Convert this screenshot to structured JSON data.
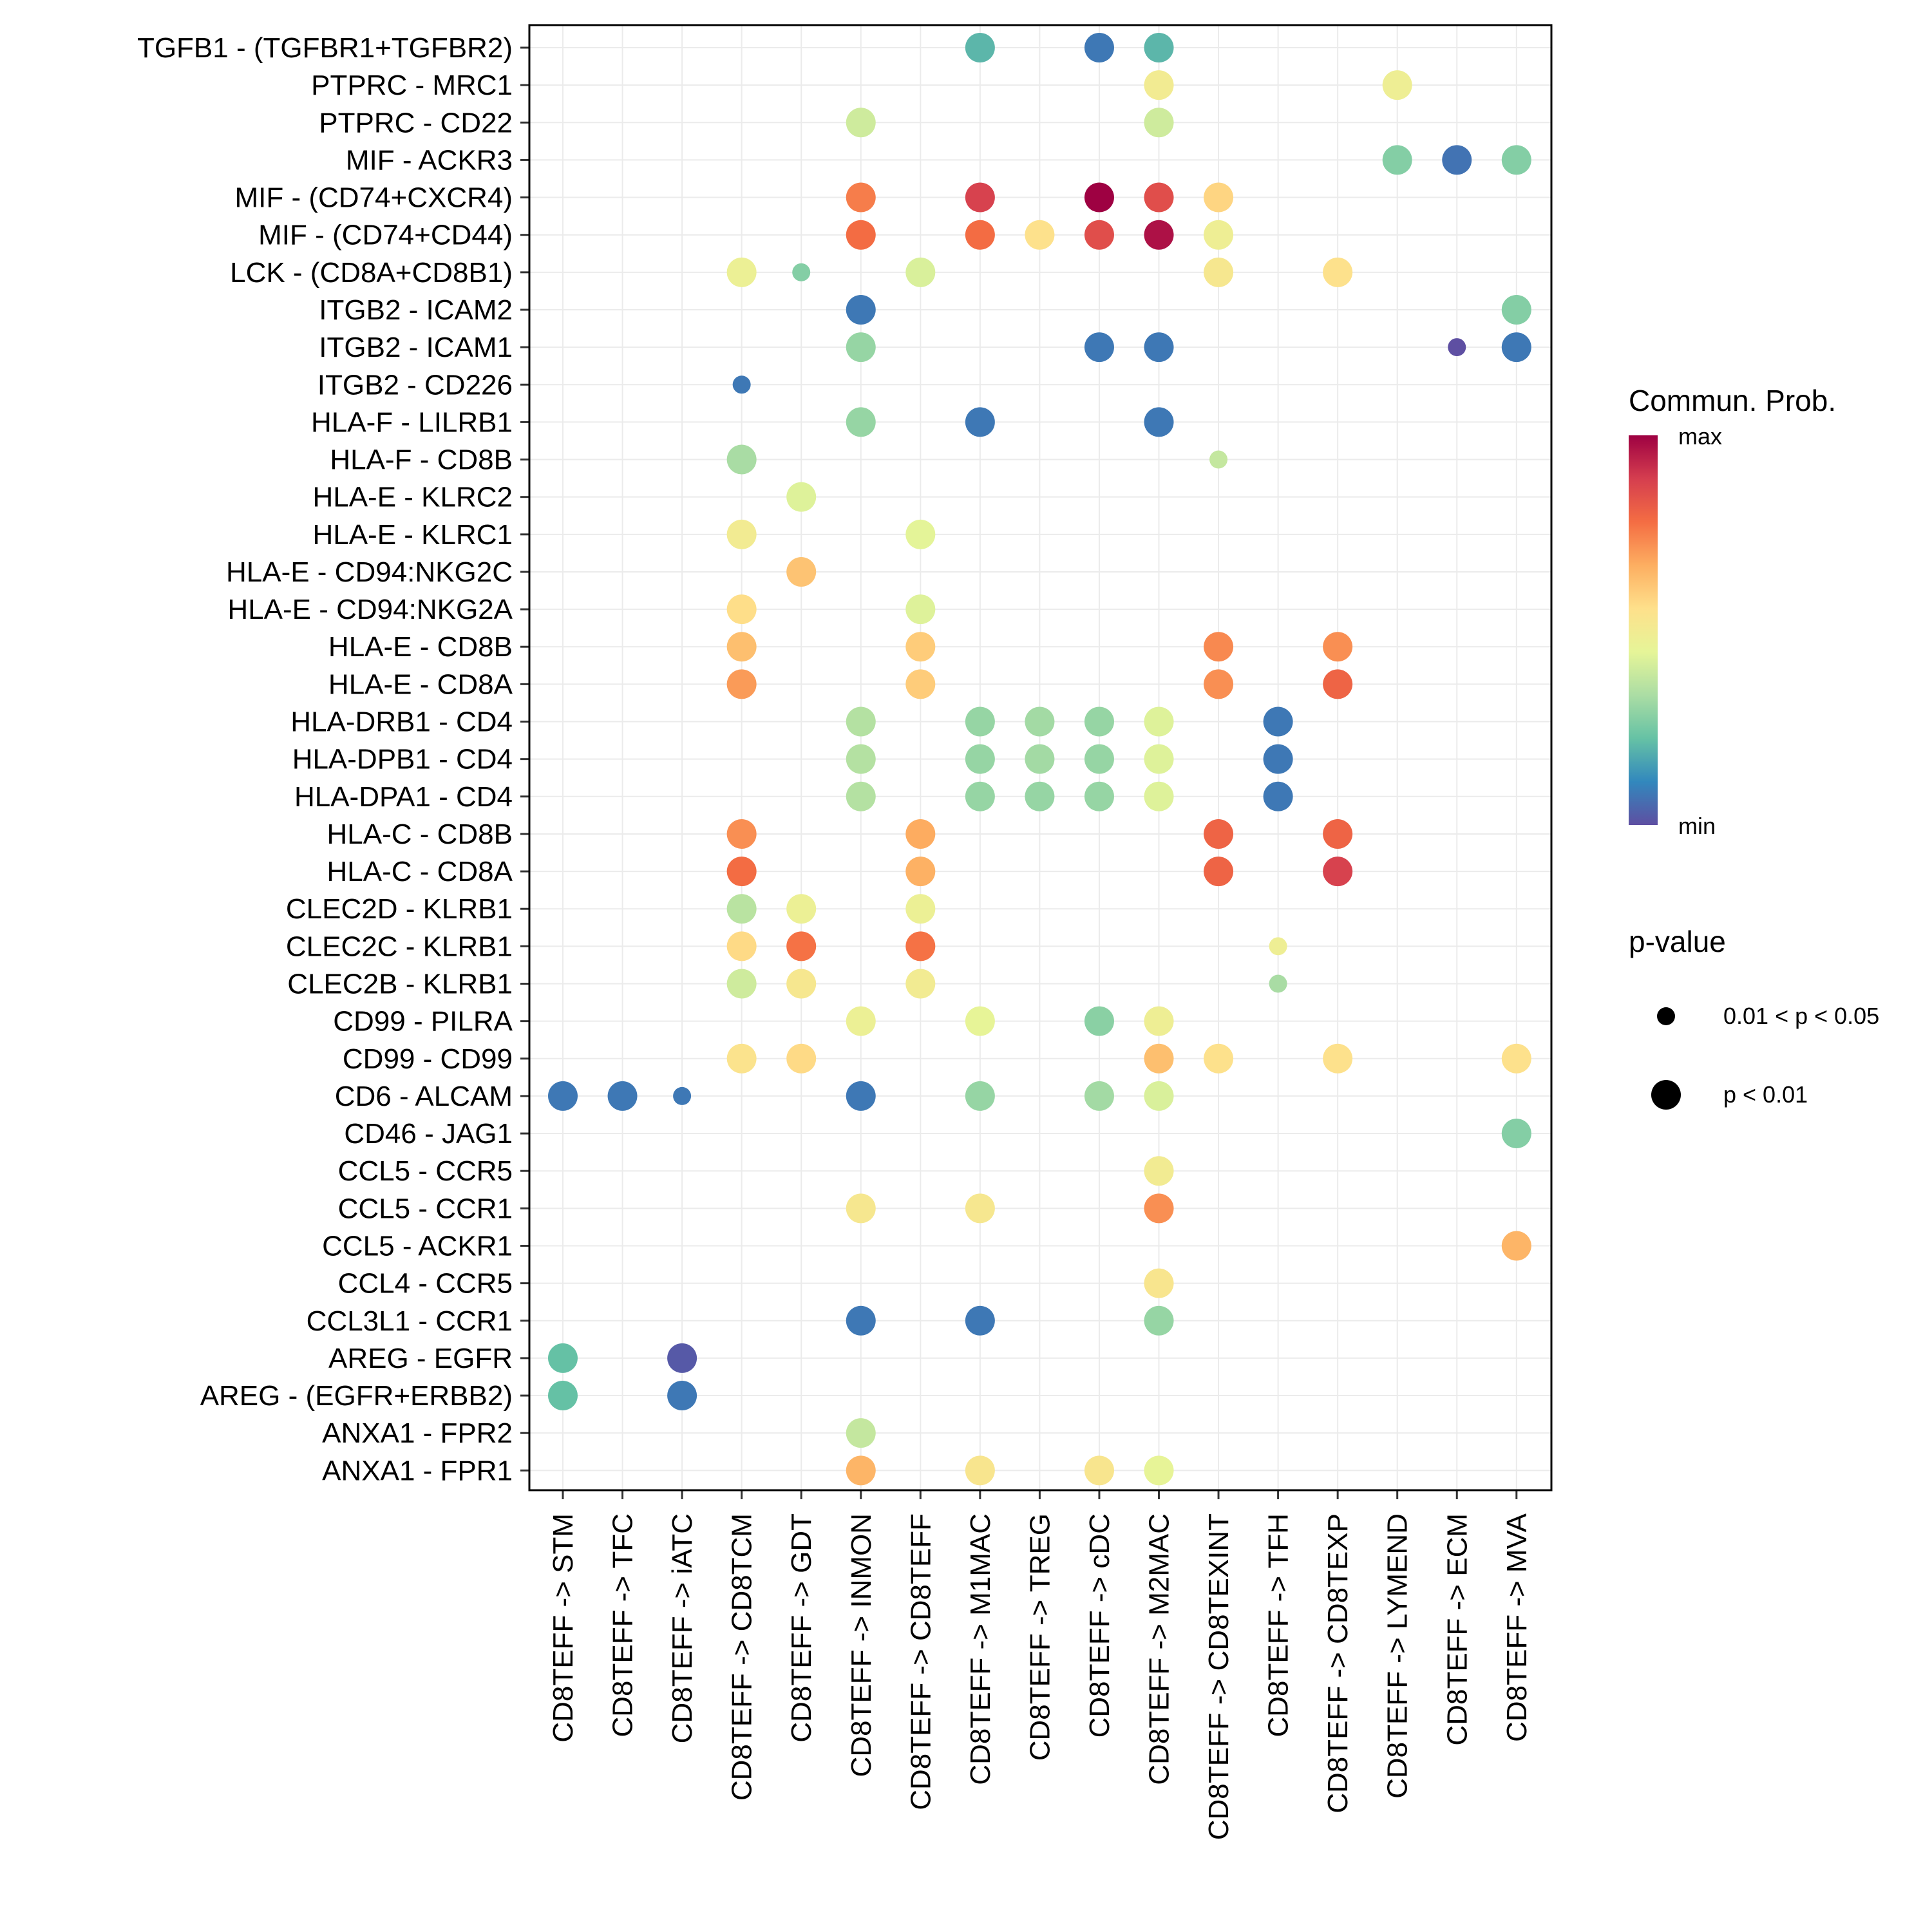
{
  "chart_data": {
    "type": "scatter",
    "subtype": "bubble",
    "title": "",
    "xlabel": "",
    "ylabel": "",
    "grid": true,
    "columns": [
      "CD8TEFF -> STM",
      "CD8TEFF -> TFC",
      "CD8TEFF -> iATC",
      "CD8TEFF -> CD8TCM",
      "CD8TEFF -> GDT",
      "CD8TEFF -> INMON",
      "CD8TEFF -> CD8TEFF",
      "CD8TEFF -> M1MAC",
      "CD8TEFF -> TREG",
      "CD8TEFF -> cDC",
      "CD8TEFF -> M2MAC",
      "CD8TEFF -> CD8TEXINT",
      "CD8TEFF -> TFH",
      "CD8TEFF -> CD8TEXP",
      "CD8TEFF -> LYMEND",
      "CD8TEFF -> ECM",
      "CD8TEFF -> MVA"
    ],
    "rows": [
      "TGFB1 - (TGFBR1+TGFBR2)",
      "PTPRC - MRC1",
      "PTPRC - CD22",
      "MIF - ACKR3",
      "MIF - (CD74+CXCR4)",
      "MIF - (CD74+CD44)",
      "LCK - (CD8A+CD8B1)",
      "ITGB2 - ICAM2",
      "ITGB2 - ICAM1",
      "ITGB2 - CD226",
      "HLA-F - LILRB1",
      "HLA-F - CD8B",
      "HLA-E - KLRC2",
      "HLA-E - KLRC1",
      "HLA-E - CD94:NKG2C",
      "HLA-E - CD94:NKG2A",
      "HLA-E - CD8B",
      "HLA-E - CD8A",
      "HLA-DRB1 - CD4",
      "HLA-DPB1 - CD4",
      "HLA-DPA1 - CD4",
      "HLA-C - CD8B",
      "HLA-C - CD8A",
      "CLEC2D - KLRB1",
      "CLEC2C - KLRB1",
      "CLEC2B - KLRB1",
      "CD99 - PILRA",
      "CD99 - CD99",
      "CD6 - ALCAM",
      "CD46 - JAG1",
      "CCL5 - CCR5",
      "CCL5 - CCR1",
      "CCL5 - ACKR1",
      "CCL4 - CCR5",
      "CCL3L1 - CCR1",
      "AREG - EGFR",
      "AREG - (EGFR+ERBB2)",
      "ANXA1 - FPR2",
      "ANXA1 - FPR1"
    ],
    "points_format": [
      "row_index",
      "column_index",
      "commun_prob_scaled_0_to_1",
      "significant_p_lt_0.01"
    ],
    "points": [
      [
        0,
        7,
        0.2,
        1
      ],
      [
        0,
        9,
        0.08,
        1
      ],
      [
        0,
        10,
        0.2,
        1
      ],
      [
        1,
        10,
        0.5,
        1
      ],
      [
        1,
        14,
        0.48,
        1
      ],
      [
        2,
        5,
        0.4,
        1
      ],
      [
        2,
        10,
        0.4,
        1
      ],
      [
        3,
        14,
        0.27,
        1
      ],
      [
        3,
        15,
        0.07,
        1
      ],
      [
        3,
        16,
        0.27,
        1
      ],
      [
        4,
        5,
        0.75,
        1
      ],
      [
        4,
        7,
        0.88,
        1
      ],
      [
        4,
        9,
        1.0,
        1
      ],
      [
        4,
        10,
        0.85,
        1
      ],
      [
        4,
        11,
        0.58,
        1
      ],
      [
        5,
        5,
        0.78,
        1
      ],
      [
        5,
        7,
        0.78,
        1
      ],
      [
        5,
        8,
        0.55,
        1
      ],
      [
        5,
        9,
        0.85,
        1
      ],
      [
        5,
        10,
        0.97,
        1
      ],
      [
        5,
        11,
        0.48,
        1
      ],
      [
        6,
        3,
        0.47,
        1
      ],
      [
        6,
        4,
        0.27,
        0
      ],
      [
        6,
        6,
        0.42,
        1
      ],
      [
        6,
        11,
        0.52,
        1
      ],
      [
        6,
        13,
        0.55,
        1
      ],
      [
        7,
        5,
        0.08,
        1
      ],
      [
        7,
        16,
        0.27,
        1
      ],
      [
        8,
        5,
        0.3,
        1
      ],
      [
        8,
        9,
        0.08,
        1
      ],
      [
        8,
        10,
        0.08,
        1
      ],
      [
        8,
        15,
        0.0,
        0
      ],
      [
        8,
        16,
        0.08,
        1
      ],
      [
        9,
        3,
        0.08,
        0
      ],
      [
        10,
        5,
        0.3,
        1
      ],
      [
        10,
        7,
        0.08,
        1
      ],
      [
        10,
        10,
        0.08,
        1
      ],
      [
        11,
        3,
        0.33,
        1
      ],
      [
        11,
        11,
        0.38,
        0
      ],
      [
        12,
        4,
        0.43,
        1
      ],
      [
        13,
        3,
        0.5,
        1
      ],
      [
        13,
        6,
        0.44,
        1
      ],
      [
        14,
        4,
        0.62,
        1
      ],
      [
        15,
        3,
        0.56,
        1
      ],
      [
        15,
        6,
        0.43,
        1
      ],
      [
        16,
        3,
        0.63,
        1
      ],
      [
        16,
        6,
        0.6,
        1
      ],
      [
        16,
        11,
        0.73,
        1
      ],
      [
        16,
        13,
        0.72,
        1
      ],
      [
        17,
        3,
        0.7,
        1
      ],
      [
        17,
        6,
        0.6,
        1
      ],
      [
        17,
        11,
        0.72,
        1
      ],
      [
        17,
        13,
        0.8,
        1
      ],
      [
        18,
        5,
        0.35,
        1
      ],
      [
        18,
        7,
        0.3,
        1
      ],
      [
        18,
        8,
        0.32,
        1
      ],
      [
        18,
        9,
        0.3,
        1
      ],
      [
        18,
        10,
        0.43,
        1
      ],
      [
        18,
        12,
        0.08,
        1
      ],
      [
        19,
        5,
        0.35,
        1
      ],
      [
        19,
        7,
        0.3,
        1
      ],
      [
        19,
        8,
        0.32,
        1
      ],
      [
        19,
        9,
        0.3,
        1
      ],
      [
        19,
        10,
        0.43,
        1
      ],
      [
        19,
        12,
        0.08,
        1
      ],
      [
        20,
        5,
        0.35,
        1
      ],
      [
        20,
        7,
        0.3,
        1
      ],
      [
        20,
        8,
        0.3,
        1
      ],
      [
        20,
        9,
        0.3,
        1
      ],
      [
        20,
        10,
        0.43,
        1
      ],
      [
        20,
        12,
        0.08,
        1
      ],
      [
        21,
        3,
        0.72,
        1
      ],
      [
        21,
        6,
        0.67,
        1
      ],
      [
        21,
        11,
        0.8,
        1
      ],
      [
        21,
        13,
        0.8,
        1
      ],
      [
        22,
        3,
        0.78,
        1
      ],
      [
        22,
        6,
        0.66,
        1
      ],
      [
        22,
        11,
        0.8,
        1
      ],
      [
        22,
        13,
        0.88,
        1
      ],
      [
        23,
        3,
        0.36,
        1
      ],
      [
        23,
        4,
        0.47,
        1
      ],
      [
        23,
        6,
        0.47,
        1
      ],
      [
        24,
        3,
        0.57,
        1
      ],
      [
        24,
        4,
        0.77,
        1
      ],
      [
        24,
        6,
        0.77,
        1
      ],
      [
        24,
        12,
        0.48,
        0
      ],
      [
        25,
        3,
        0.4,
        1
      ],
      [
        25,
        4,
        0.52,
        1
      ],
      [
        25,
        6,
        0.5,
        1
      ],
      [
        25,
        12,
        0.33,
        0
      ],
      [
        26,
        5,
        0.47,
        1
      ],
      [
        26,
        7,
        0.45,
        1
      ],
      [
        26,
        9,
        0.28,
        1
      ],
      [
        26,
        10,
        0.48,
        1
      ],
      [
        27,
        3,
        0.54,
        1
      ],
      [
        27,
        4,
        0.57,
        1
      ],
      [
        27,
        10,
        0.63,
        1
      ],
      [
        27,
        11,
        0.55,
        1
      ],
      [
        27,
        13,
        0.55,
        1
      ],
      [
        27,
        16,
        0.55,
        1
      ],
      [
        28,
        0,
        0.08,
        1
      ],
      [
        28,
        1,
        0.08,
        1
      ],
      [
        28,
        2,
        0.08,
        0
      ],
      [
        28,
        5,
        0.08,
        1
      ],
      [
        28,
        7,
        0.3,
        1
      ],
      [
        28,
        9,
        0.32,
        1
      ],
      [
        28,
        10,
        0.42,
        1
      ],
      [
        29,
        16,
        0.27,
        1
      ],
      [
        30,
        10,
        0.5,
        1
      ],
      [
        31,
        5,
        0.52,
        1
      ],
      [
        31,
        7,
        0.52,
        1
      ],
      [
        31,
        10,
        0.72,
        1
      ],
      [
        32,
        16,
        0.65,
        1
      ],
      [
        33,
        10,
        0.53,
        1
      ],
      [
        34,
        5,
        0.08,
        1
      ],
      [
        34,
        7,
        0.08,
        1
      ],
      [
        34,
        10,
        0.3,
        1
      ],
      [
        35,
        0,
        0.22,
        1
      ],
      [
        35,
        2,
        0.02,
        1
      ],
      [
        36,
        0,
        0.22,
        1
      ],
      [
        36,
        2,
        0.08,
        1
      ],
      [
        37,
        5,
        0.38,
        1
      ],
      [
        38,
        5,
        0.65,
        1
      ],
      [
        38,
        7,
        0.53,
        1
      ],
      [
        38,
        9,
        0.53,
        1
      ],
      [
        38,
        10,
        0.45,
        1
      ]
    ],
    "color_legend": {
      "title": "Commun. Prob.",
      "max_label": "max",
      "min_label": "min",
      "palette": [
        "#5E4FA2",
        "#3288BD",
        "#66C2A5",
        "#ABDDA4",
        "#E6F598",
        "#FEE08B",
        "#FDAE61",
        "#F46D43",
        "#D53E4F",
        "#9E0142"
      ]
    },
    "size_legend": {
      "title": "p-value",
      "entries": [
        "0.01 < p < 0.05",
        "p < 0.01"
      ]
    },
    "legend_placement": "right"
  }
}
